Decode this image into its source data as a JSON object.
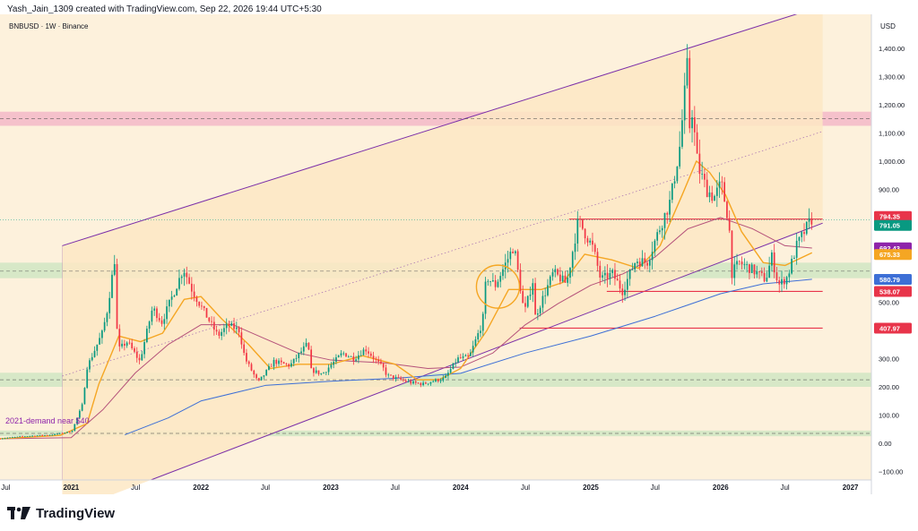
{
  "header": {
    "author_line": "Yash_Jain_1309 created with TradingView.com, Sep 22, 2026 19:44 UTC+5:30"
  },
  "footer": {
    "brand": "TradingView",
    "brand_icon": "tradingview-logo-icon"
  },
  "colors": {
    "channel_fill": "#fde8c4",
    "channel_line": "#7b2fa8",
    "supply_zone": "#f3b8c8",
    "demand_zone": "#c9e4c0",
    "candle_up": "#089981",
    "candle_down": "#f23645",
    "ema_orange": "#f5a623",
    "ma_purple": "#b5527a",
    "ma_blue": "#3d6fd6",
    "resistance_red": "#e8344a"
  },
  "chart_data": {
    "type": "candlestick",
    "symbol_label": "BNBUSD · 1W · Binance",
    "currency_label": "USD",
    "annotation": "2021-demand near $40",
    "x_axis": {
      "range": [
        "2020-06-15",
        "2027-03-01"
      ],
      "ticks": [
        {
          "date": "2020-07-01",
          "label": "Jul"
        },
        {
          "date": "2021-01-01",
          "label": "2021"
        },
        {
          "date": "2021-07-01",
          "label": "Jul"
        },
        {
          "date": "2022-01-01",
          "label": "2022"
        },
        {
          "date": "2022-07-01",
          "label": "Jul"
        },
        {
          "date": "2023-01-01",
          "label": "2023"
        },
        {
          "date": "2023-07-01",
          "label": "Jul"
        },
        {
          "date": "2024-01-01",
          "label": "2024"
        },
        {
          "date": "2024-07-01",
          "label": "Jul"
        },
        {
          "date": "2025-01-01",
          "label": "2025"
        },
        {
          "date": "2025-07-01",
          "label": "Jul"
        },
        {
          "date": "2026-01-01",
          "label": "2026"
        },
        {
          "date": "2026-07-01",
          "label": "Jul"
        },
        {
          "date": "2027-01-01",
          "label": "2027"
        }
      ]
    },
    "y_axis": {
      "range": [
        -130,
        1520
      ],
      "ticks": [
        {
          "value": 1400,
          "label": "1,400.00"
        },
        {
          "value": 1300,
          "label": "1,300.00"
        },
        {
          "value": 1200,
          "label": "1,200.00"
        },
        {
          "value": 1100,
          "label": "1,100.00"
        },
        {
          "value": 1000,
          "label": "1,000.00"
        },
        {
          "value": 900,
          "label": "900.00"
        },
        {
          "value": 500,
          "label": "500.00"
        },
        {
          "value": 300,
          "label": "300.00"
        },
        {
          "value": 200,
          "label": "200.00"
        },
        {
          "value": 100,
          "label": "100.00"
        },
        {
          "value": 0,
          "label": "0.00"
        },
        {
          "value": -100,
          "label": "−100.00"
        }
      ]
    },
    "price_labels": [
      {
        "value": 794.35,
        "label": "794.35",
        "color": "#e8344a"
      },
      {
        "value": 791.05,
        "label": "791.05",
        "color": "#089981"
      },
      {
        "value": 692.43,
        "label": "692.43",
        "color": "#8e24aa"
      },
      {
        "value": 675.33,
        "label": "675.33",
        "color": "#f5a623"
      },
      {
        "value": 580.79,
        "label": "580.79",
        "color": "#3d6fd6"
      },
      {
        "value": 538.07,
        "label": "538.07",
        "color": "#e8344a"
      },
      {
        "value": 407.97,
        "label": "407.97",
        "color": "#e8344a"
      }
    ],
    "channel": {
      "start": "2020-12-07",
      "end": "2026-10-15",
      "upper": [
        700,
        1550
      ],
      "lower": [
        -250,
        780
      ],
      "mid_dotted": [
        238,
        1105
      ]
    },
    "zones": [
      {
        "kind": "supply",
        "from": 1125,
        "to": 1175
      },
      {
        "kind": "demand",
        "from": 585,
        "to": 640
      },
      {
        "kind": "demand",
        "from": 200,
        "to": 250
      },
      {
        "kind": "demand",
        "from": 25,
        "to": 45
      }
    ],
    "dashed_levels": [
      1150,
      610,
      225,
      35
    ],
    "horizontal_lines": [
      {
        "value": 794.35,
        "from": "2024-11-01",
        "to": "2026-10-15"
      },
      {
        "value": 538.07,
        "from": "2025-02-15",
        "to": "2026-10-15"
      },
      {
        "value": 407.97,
        "from": "2024-06-15",
        "to": "2026-10-15"
      }
    ],
    "highlight_circle": {
      "date": "2024-04-15",
      "value": 555
    },
    "price_anchors": [
      [
        "2020-06-15",
        16
      ],
      [
        "2020-09-01",
        25
      ],
      [
        "2020-11-15",
        30
      ],
      [
        "2021-01-10",
        42
      ],
      [
        "2021-02-08",
        135
      ],
      [
        "2021-02-22",
        270
      ],
      [
        "2021-04-05",
        390
      ],
      [
        "2021-04-18",
        460
      ],
      [
        "2021-05-10",
        650
      ],
      [
        "2021-05-19",
        330
      ],
      [
        "2021-06-15",
        360
      ],
      [
        "2021-07-20",
        290
      ],
      [
        "2021-08-25",
        480
      ],
      [
        "2021-09-20",
        430
      ],
      [
        "2021-11-01",
        560
      ],
      [
        "2021-11-20",
        620
      ],
      [
        "2021-12-15",
        540
      ],
      [
        "2022-01-15",
        470
      ],
      [
        "2022-02-25",
        380
      ],
      [
        "2022-03-25",
        420
      ],
      [
        "2022-04-25",
        400
      ],
      [
        "2022-05-12",
        300
      ],
      [
        "2022-06-18",
        215
      ],
      [
        "2022-08-01",
        290
      ],
      [
        "2022-09-15",
        275
      ],
      [
        "2022-11-05",
        355
      ],
      [
        "2022-11-12",
        260
      ],
      [
        "2022-12-15",
        245
      ],
      [
        "2023-02-10",
        320
      ],
      [
        "2023-03-15",
        300
      ],
      [
        "2023-04-15",
        335
      ],
      [
        "2023-06-05",
        265
      ],
      [
        "2023-06-15",
        240
      ],
      [
        "2023-08-20",
        215
      ],
      [
        "2023-09-25",
        210
      ],
      [
        "2023-10-20",
        220
      ],
      [
        "2023-11-25",
        230
      ],
      [
        "2023-12-30",
        300
      ],
      [
        "2024-02-01",
        305
      ],
      [
        "2024-03-10",
        430
      ],
      [
        "2024-03-20",
        590
      ],
      [
        "2024-04-15",
        560
      ],
      [
        "2024-06-06",
        700
      ],
      [
        "2024-07-05",
        460
      ],
      [
        "2024-07-30",
        580
      ],
      [
        "2024-08-05",
        450
      ],
      [
        "2024-09-25",
        605
      ],
      [
        "2024-11-01",
        565
      ],
      [
        "2024-12-04",
        790
      ],
      [
        "2025-01-15",
        690
      ],
      [
        "2025-02-05",
        580
      ],
      [
        "2025-03-10",
        600
      ],
      [
        "2025-04-07",
        540
      ],
      [
        "2025-05-15",
        650
      ],
      [
        "2025-06-15",
        640
      ],
      [
        "2025-07-20",
        760
      ],
      [
        "2025-08-20",
        860
      ],
      [
        "2025-09-15",
        1050
      ],
      [
        "2025-10-06",
        1330
      ],
      [
        "2025-10-10",
        1100
      ],
      [
        "2025-10-20",
        1180
      ],
      [
        "2025-11-05",
        980
      ],
      [
        "2025-11-30",
        900
      ],
      [
        "2025-12-20",
        870
      ],
      [
        "2026-01-10",
        920
      ],
      [
        "2026-02-01",
        780
      ],
      [
        "2026-02-07",
        600
      ],
      [
        "2026-03-01",
        640
      ],
      [
        "2026-04-01",
        620
      ],
      [
        "2026-05-15",
        580
      ],
      [
        "2026-06-01",
        660
      ],
      [
        "2026-06-20",
        560
      ],
      [
        "2026-07-15",
        590
      ],
      [
        "2026-08-10",
        700
      ],
      [
        "2026-09-20",
        794
      ]
    ],
    "ema_anchors": [
      [
        "2020-06-15",
        16
      ],
      [
        "2020-12-01",
        28
      ],
      [
        "2021-02-15",
        70
      ],
      [
        "2021-03-20",
        210
      ],
      [
        "2021-05-15",
        380
      ],
      [
        "2021-07-15",
        360
      ],
      [
        "2021-09-15",
        390
      ],
      [
        "2021-11-15",
        510
      ],
      [
        "2022-01-01",
        520
      ],
      [
        "2022-03-01",
        440
      ],
      [
        "2022-05-15",
        350
      ],
      [
        "2022-07-15",
        265
      ],
      [
        "2022-10-01",
        280
      ],
      [
        "2023-01-01",
        280
      ],
      [
        "2023-04-01",
        310
      ],
      [
        "2023-07-01",
        280
      ],
      [
        "2023-09-01",
        225
      ],
      [
        "2023-11-01",
        225
      ],
      [
        "2024-01-01",
        265
      ],
      [
        "2024-03-15",
        400
      ],
      [
        "2024-05-15",
        545
      ],
      [
        "2024-08-15",
        545
      ],
      [
        "2024-10-15",
        570
      ],
      [
        "2024-12-15",
        670
      ],
      [
        "2025-03-01",
        650
      ],
      [
        "2025-05-15",
        620
      ],
      [
        "2025-07-15",
        700
      ],
      [
        "2025-09-15",
        880
      ],
      [
        "2025-10-25",
        1000
      ],
      [
        "2025-12-01",
        960
      ],
      [
        "2026-01-15",
        880
      ],
      [
        "2026-03-01",
        750
      ],
      [
        "2026-05-01",
        640
      ],
      [
        "2026-07-01",
        630
      ],
      [
        "2026-09-15",
        675
      ]
    ],
    "ma_anchors": [
      [
        "2020-06-15",
        16
      ],
      [
        "2021-01-01",
        20
      ],
      [
        "2021-04-01",
        120
      ],
      [
        "2021-07-01",
        250
      ],
      [
        "2021-10-01",
        350
      ],
      [
        "2022-01-01",
        420
      ],
      [
        "2022-04-01",
        420
      ],
      [
        "2022-07-01",
        370
      ],
      [
        "2022-10-01",
        320
      ],
      [
        "2023-01-01",
        295
      ],
      [
        "2023-06-01",
        285
      ],
      [
        "2023-10-01",
        265
      ],
      [
        "2024-01-01",
        270
      ],
      [
        "2024-04-01",
        320
      ],
      [
        "2024-07-01",
        420
      ],
      [
        "2024-10-01",
        495
      ],
      [
        "2025-01-01",
        560
      ],
      [
        "2025-04-01",
        600
      ],
      [
        "2025-07-01",
        660
      ],
      [
        "2025-10-01",
        760
      ],
      [
        "2026-01-01",
        800
      ],
      [
        "2026-04-01",
        760
      ],
      [
        "2026-07-01",
        700
      ],
      [
        "2026-09-15",
        692
      ]
    ],
    "ma_long_anchors": [
      [
        "2021-06-01",
        30
      ],
      [
        "2021-10-01",
        90
      ],
      [
        "2022-01-01",
        150
      ],
      [
        "2022-07-01",
        205
      ],
      [
        "2023-01-01",
        220
      ],
      [
        "2023-07-01",
        230
      ],
      [
        "2024-01-01",
        248
      ],
      [
        "2024-07-01",
        320
      ],
      [
        "2025-01-01",
        380
      ],
      [
        "2025-07-01",
        450
      ],
      [
        "2026-01-01",
        530
      ],
      [
        "2026-05-01",
        565
      ],
      [
        "2026-09-15",
        581
      ]
    ]
  }
}
